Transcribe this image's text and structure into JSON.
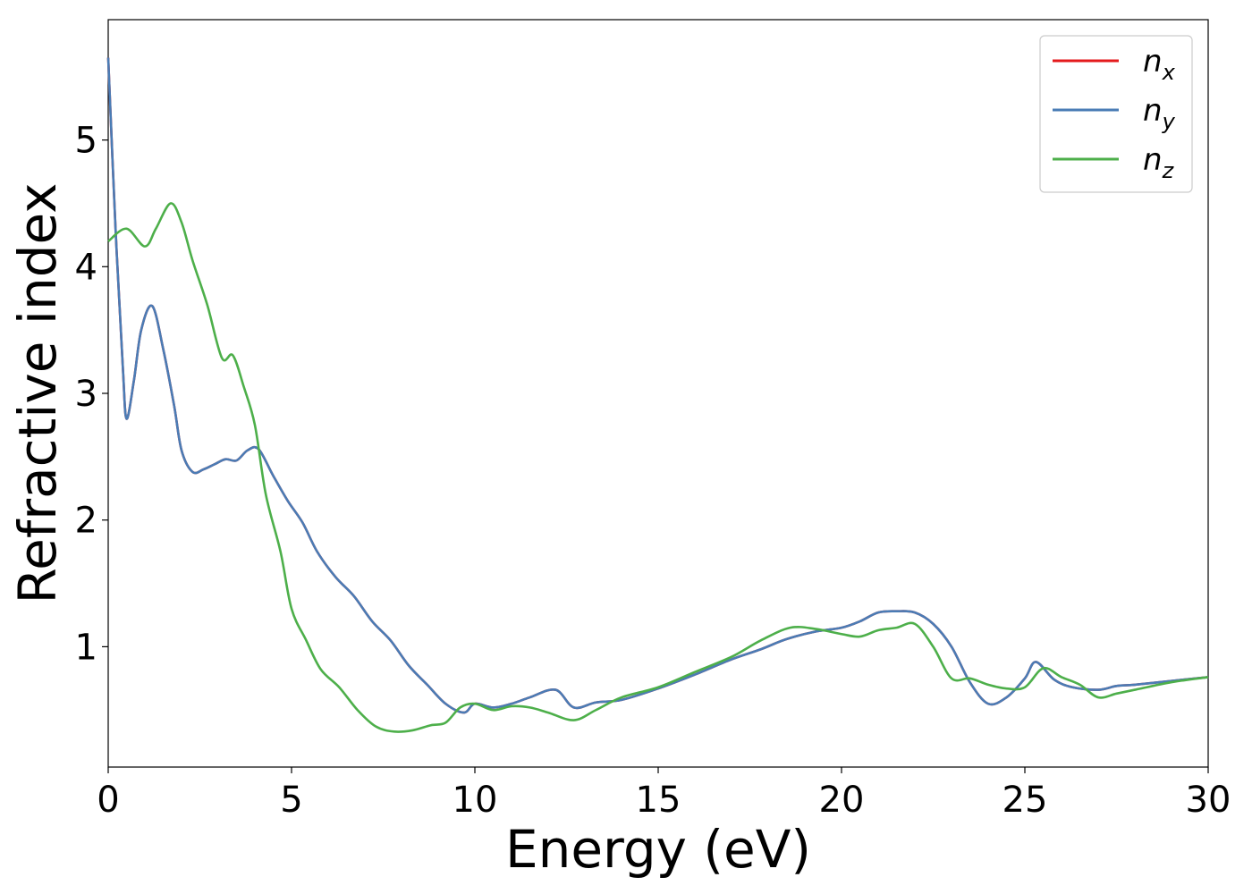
{
  "chart_data": {
    "type": "line",
    "title": "",
    "xlabel": "Energy (eV)",
    "ylabel": "Refractive index",
    "xlim": [
      0,
      30
    ],
    "ylim": [
      0.05,
      5.95
    ],
    "xticks": [
      0,
      5,
      10,
      15,
      20,
      25,
      30
    ],
    "yticks": [
      1,
      2,
      3,
      4,
      5
    ],
    "grid": false,
    "legend_position": "top-right",
    "series": [
      {
        "name": "n_x",
        "label_main": "n",
        "label_sub": "x",
        "color": "#e41a1c",
        "x": [
          0,
          0.2,
          0.4,
          0.5,
          0.7,
          0.9,
          1.2,
          1.5,
          1.8,
          2.0,
          2.3,
          2.6,
          2.9,
          3.2,
          3.5,
          3.8,
          4.1,
          4.5,
          4.9,
          5.3,
          5.7,
          6.2,
          6.7,
          7.2,
          7.7,
          8.2,
          8.7,
          9.2,
          9.7,
          10.0,
          10.5,
          11.0,
          11.5,
          12.2,
          12.7,
          13.3,
          14.0,
          15.0,
          16.0,
          17.0,
          17.8,
          18.5,
          19.3,
          20.0,
          20.5,
          21.0,
          21.5,
          22.0,
          22.5,
          23.0,
          23.5,
          24.0,
          24.5,
          25.0,
          25.3,
          25.8,
          26.3,
          27.0,
          27.5,
          28.0,
          29.0,
          30.0
        ],
        "y": [
          5.65,
          4.3,
          3.2,
          2.8,
          3.1,
          3.5,
          3.69,
          3.35,
          2.9,
          2.55,
          2.38,
          2.4,
          2.44,
          2.48,
          2.47,
          2.55,
          2.56,
          2.35,
          2.15,
          1.98,
          1.75,
          1.55,
          1.4,
          1.2,
          1.05,
          0.85,
          0.7,
          0.55,
          0.48,
          0.55,
          0.52,
          0.55,
          0.6,
          0.66,
          0.52,
          0.56,
          0.58,
          0.67,
          0.78,
          0.9,
          0.98,
          1.06,
          1.12,
          1.15,
          1.2,
          1.27,
          1.28,
          1.27,
          1.18,
          1.0,
          0.72,
          0.55,
          0.6,
          0.75,
          0.88,
          0.74,
          0.68,
          0.66,
          0.69,
          0.7,
          0.73,
          0.76
        ]
      },
      {
        "name": "n_y",
        "label_main": "n",
        "label_sub": "y",
        "color": "#4a7cb5",
        "x": [
          0,
          0.2,
          0.4,
          0.5,
          0.7,
          0.9,
          1.2,
          1.5,
          1.8,
          2.0,
          2.3,
          2.6,
          2.9,
          3.2,
          3.5,
          3.8,
          4.1,
          4.5,
          4.9,
          5.3,
          5.7,
          6.2,
          6.7,
          7.2,
          7.7,
          8.2,
          8.7,
          9.2,
          9.7,
          10.0,
          10.5,
          11.0,
          11.5,
          12.2,
          12.7,
          13.3,
          14.0,
          15.0,
          16.0,
          17.0,
          17.8,
          18.5,
          19.3,
          20.0,
          20.5,
          21.0,
          21.5,
          22.0,
          22.5,
          23.0,
          23.5,
          24.0,
          24.5,
          25.0,
          25.3,
          25.8,
          26.3,
          27.0,
          27.5,
          28.0,
          29.0,
          30.0
        ],
        "y": [
          5.65,
          4.3,
          3.2,
          2.8,
          3.1,
          3.5,
          3.69,
          3.35,
          2.9,
          2.55,
          2.38,
          2.4,
          2.44,
          2.48,
          2.47,
          2.55,
          2.56,
          2.35,
          2.15,
          1.98,
          1.75,
          1.55,
          1.4,
          1.2,
          1.05,
          0.85,
          0.7,
          0.55,
          0.48,
          0.55,
          0.52,
          0.55,
          0.6,
          0.66,
          0.52,
          0.56,
          0.58,
          0.67,
          0.78,
          0.9,
          0.98,
          1.06,
          1.12,
          1.15,
          1.2,
          1.27,
          1.28,
          1.27,
          1.18,
          1.0,
          0.72,
          0.55,
          0.6,
          0.75,
          0.88,
          0.74,
          0.68,
          0.66,
          0.69,
          0.7,
          0.73,
          0.76
        ]
      },
      {
        "name": "n_z",
        "label_main": "n",
        "label_sub": "z",
        "color": "#4daf4a",
        "x": [
          0,
          0.5,
          1.0,
          1.3,
          1.7,
          2.0,
          2.3,
          2.7,
          3.1,
          3.4,
          3.7,
          4.0,
          4.3,
          4.7,
          5.0,
          5.4,
          5.8,
          6.3,
          6.8,
          7.3,
          7.8,
          8.3,
          8.8,
          9.2,
          9.6,
          10.0,
          10.5,
          11.0,
          11.5,
          12.0,
          12.7,
          13.3,
          14.0,
          15.0,
          16.0,
          17.0,
          17.8,
          18.6,
          19.3,
          20.0,
          20.5,
          21.0,
          21.5,
          22.0,
          22.5,
          23.0,
          23.5,
          24.0,
          24.5,
          25.0,
          25.5,
          26.0,
          26.5,
          27.0,
          27.5,
          28.0,
          29.0,
          30.0
        ],
        "y": [
          4.2,
          4.3,
          4.16,
          4.3,
          4.5,
          4.35,
          4.05,
          3.7,
          3.28,
          3.3,
          3.05,
          2.75,
          2.2,
          1.75,
          1.3,
          1.05,
          0.82,
          0.68,
          0.5,
          0.37,
          0.33,
          0.34,
          0.38,
          0.4,
          0.52,
          0.55,
          0.5,
          0.53,
          0.52,
          0.48,
          0.42,
          0.5,
          0.6,
          0.68,
          0.8,
          0.92,
          1.05,
          1.15,
          1.14,
          1.1,
          1.08,
          1.13,
          1.15,
          1.18,
          1.0,
          0.75,
          0.75,
          0.7,
          0.67,
          0.68,
          0.83,
          0.76,
          0.7,
          0.6,
          0.63,
          0.66,
          0.72,
          0.76
        ]
      }
    ]
  }
}
